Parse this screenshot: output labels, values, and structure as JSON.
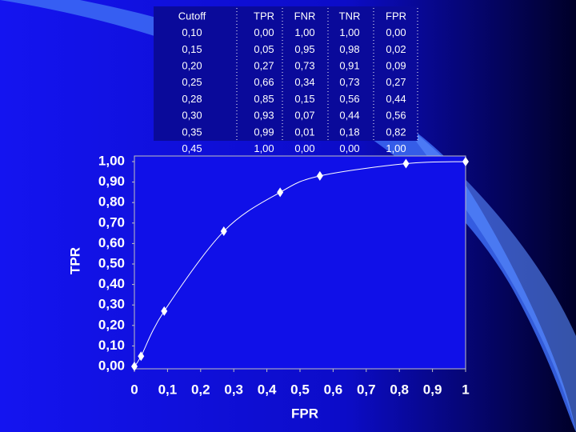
{
  "table": {
    "columns": [
      "Cutoff",
      "TPR",
      "FNR",
      "TNR",
      "FPR"
    ],
    "rows": [
      [
        "0,10",
        "0,00",
        "1,00",
        "1,00",
        "0,00"
      ],
      [
        "0,15",
        "0,05",
        "0,95",
        "0,98",
        "0,02"
      ],
      [
        "0,20",
        "0,27",
        "0,73",
        "0,91",
        "0,09"
      ],
      [
        "0,25",
        "0,66",
        "0,34",
        "0,73",
        "0,27"
      ],
      [
        "0,28",
        "0,85",
        "0,15",
        "0,56",
        "0,44"
      ],
      [
        "0,30",
        "0,93",
        "0,07",
        "0,44",
        "0,56"
      ],
      [
        "0,35",
        "0,99",
        "0,01",
        "0,18",
        "0,82"
      ],
      [
        "0,45",
        "1,00",
        "0,00",
        "0,00",
        "1,00"
      ]
    ]
  },
  "chart_data": {
    "type": "line",
    "xlabel": "FPR",
    "ylabel": "TPR",
    "x": [
      0,
      0.02,
      0.09,
      0.27,
      0.44,
      0.56,
      0.82,
      1
    ],
    "values": [
      0,
      0.05,
      0.27,
      0.66,
      0.85,
      0.93,
      0.99,
      1
    ],
    "color": "#ffffff",
    "xlim": [
      0,
      1
    ],
    "ylim": [
      0,
      1
    ],
    "xticks": [
      0,
      {
        "value": 0.1,
        "label": "0,1"
      },
      {
        "value": 0.2,
        "label": "0,2"
      },
      {
        "value": 0.3,
        "label": "0,3"
      },
      {
        "value": 0.4,
        "label": "0,4"
      },
      {
        "value": 0.5,
        "label": "0,5"
      },
      {
        "value": 0.6,
        "label": "0,6"
      },
      {
        "value": 0.7,
        "label": "0,7"
      },
      {
        "value": 0.8,
        "label": "0,8"
      },
      {
        "value": 0.9,
        "label": "0,9"
      },
      1
    ],
    "yticks": [
      {
        "value": 0,
        "label": "0,00"
      },
      {
        "value": 0.1,
        "label": "0,10"
      },
      {
        "value": 0.2,
        "label": "0,20"
      },
      {
        "value": 0.3,
        "label": "0,30"
      },
      {
        "value": 0.4,
        "label": "0,40"
      },
      {
        "value": 0.5,
        "label": "0,50"
      },
      {
        "value": 0.6,
        "label": "0,60"
      },
      {
        "value": 0.7,
        "label": "0,70"
      },
      {
        "value": 0.8,
        "label": "0,80"
      },
      {
        "value": 0.9,
        "label": "0,90"
      },
      {
        "value": 1,
        "label": "1,00"
      }
    ]
  }
}
